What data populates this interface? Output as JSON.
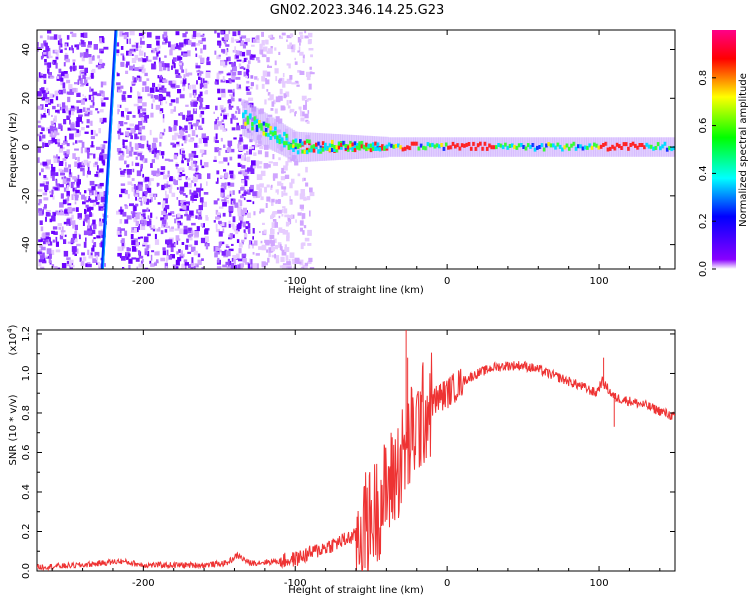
{
  "title": "GN02.2023.346.14.25.G23",
  "chart_data": [
    {
      "type": "heatmap",
      "xlabel": "Height of straight line (km)",
      "ylabel": "Frequency (Hz)",
      "xlim": [
        -270,
        150
      ],
      "ylim": [
        -50,
        48
      ],
      "xticks": [
        -200,
        -100,
        0,
        100
      ],
      "yticks": [
        -40,
        -20,
        0,
        20,
        40
      ],
      "colorbar": {
        "label": "Normalized spectral amplitude",
        "range": [
          0.0,
          1.0
        ],
        "ticks": [
          0.0,
          0.2,
          0.4,
          0.6,
          0.8
        ],
        "colormap": "rainbow",
        "stops": [
          "#ffffff",
          "#8800ff",
          "#0000ff",
          "#00ffff",
          "#00ff00",
          "#ffff00",
          "#ff0000",
          "#ff0088"
        ]
      },
      "features": {
        "noise_region_x": [
          -270,
          -128
        ],
        "sparse_region_x": [
          -128,
          -100
        ],
        "track_center_hz": 0,
        "track_start_x": -135,
        "track_start_hz": 12,
        "red_peak_segments_x": [
          [
            -30,
            -20
          ],
          [
            0,
            30
          ],
          [
            100,
            130
          ]
        ],
        "diagonal_trace": {
          "x_top": -218,
          "x_bottom": -227
        },
        "white_gaps_x": [
          [
            -226,
            -218
          ],
          [
            -158,
            -154
          ]
        ]
      }
    },
    {
      "type": "line",
      "xlabel": "Height of straight line (km)",
      "ylabel": "SNR (10 * v/v)",
      "multiplier": "(x10",
      "multiplier_exp": "4",
      "multiplier_close": ")",
      "xlim": [
        -270,
        150
      ],
      "ylim": [
        0.0,
        1.22
      ],
      "xticks": [
        -200,
        -100,
        0,
        100
      ],
      "yticks": [
        0.0,
        0.2,
        0.4,
        0.6,
        0.8,
        1.0,
        1.2
      ],
      "ytick_labels": [
        "0.0",
        "0.2",
        "0.4",
        "0.6",
        "0.8",
        "1.0",
        "1.2"
      ],
      "color": "#ee3333",
      "series": [
        {
          "x": [
            -270,
            -240,
            -215,
            -200,
            -160,
            -145,
            -138,
            -130,
            -110,
            -100,
            -90,
            -80,
            -70,
            -60,
            -55,
            -50,
            -45,
            -40,
            -35,
            -30,
            -25,
            -20,
            -15,
            -10,
            -5,
            0,
            10,
            20,
            30,
            40,
            50,
            60,
            70,
            80,
            90,
            98,
            102,
            110,
            120,
            130,
            140,
            150
          ],
          "y": [
            0.02,
            0.03,
            0.05,
            0.03,
            0.03,
            0.04,
            0.08,
            0.04,
            0.05,
            0.06,
            0.09,
            0.12,
            0.15,
            0.18,
            0.22,
            0.26,
            0.33,
            0.4,
            0.48,
            0.56,
            0.65,
            0.73,
            0.8,
            0.85,
            0.88,
            0.9,
            0.96,
            1.0,
            1.03,
            1.04,
            1.04,
            1.02,
            0.99,
            0.96,
            0.93,
            0.9,
            0.96,
            0.88,
            0.86,
            0.84,
            0.81,
            0.78
          ]
        }
      ],
      "spikes": [
        {
          "x": -27,
          "y": 1.22
        },
        {
          "x": -26,
          "y": 1.08
        },
        {
          "x": 103,
          "y": 1.08
        },
        {
          "x": 110,
          "y": 0.73
        }
      ]
    }
  ]
}
